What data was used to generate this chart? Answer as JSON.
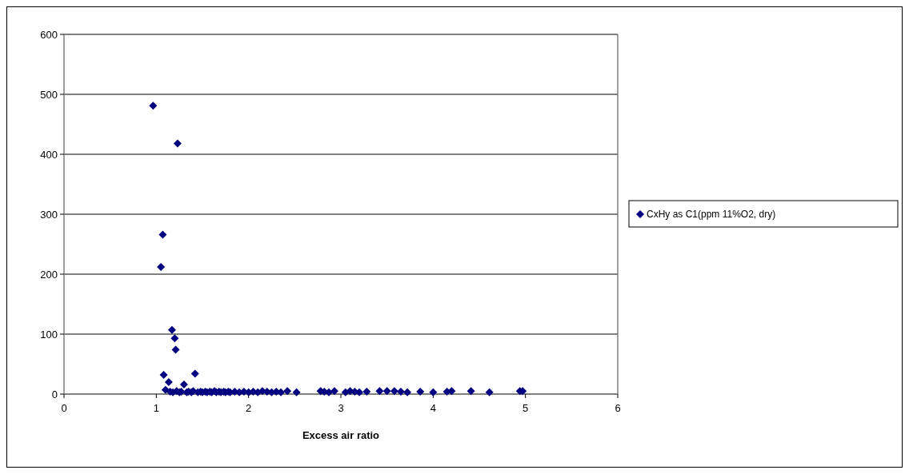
{
  "chart_data": {
    "type": "scatter",
    "xlabel": "Excess air ratio",
    "xlim": [
      0,
      6
    ],
    "xticks": [
      0,
      1,
      2,
      3,
      4,
      5,
      6
    ],
    "ylim": [
      0,
      600
    ],
    "yticks": [
      0,
      100,
      200,
      300,
      400,
      500,
      600
    ],
    "grid": "y",
    "legend": "right",
    "marker": "diamond",
    "series": [
      {
        "name": "CxHy as C1(ppm 11%O2, dry)",
        "color": "#000080",
        "x": [
          0.965,
          1.23,
          1.07,
          1.05,
          1.17,
          1.2,
          1.21,
          1.08,
          1.135,
          1.42,
          1.3,
          1.1,
          1.15,
          1.18,
          1.22,
          1.25,
          1.27,
          1.33,
          1.35,
          1.38,
          1.4,
          1.45,
          1.48,
          1.5,
          1.53,
          1.55,
          1.58,
          1.6,
          1.63,
          1.65,
          1.68,
          1.7,
          1.73,
          1.75,
          1.78,
          1.8,
          1.85,
          1.9,
          1.95,
          2.0,
          2.05,
          2.1,
          2.15,
          2.2,
          2.25,
          2.3,
          2.35,
          2.42,
          2.52,
          2.78,
          2.82,
          2.87,
          2.93,
          3.05,
          3.1,
          3.15,
          3.2,
          3.28,
          3.42,
          3.5,
          3.58,
          3.65,
          3.72,
          3.86,
          4.0,
          4.15,
          4.2,
          4.41,
          4.61,
          4.94,
          4.97
        ],
        "values": [
          481,
          418,
          266,
          212,
          107,
          93,
          74,
          32,
          20,
          34,
          16,
          7,
          4,
          3,
          5,
          3,
          4,
          3,
          4,
          3,
          5,
          3,
          4,
          3,
          4,
          3,
          4,
          3,
          5,
          3,
          4,
          3,
          4,
          3,
          4,
          3,
          4,
          3,
          4,
          3,
          4,
          3,
          5,
          4,
          3,
          4,
          3,
          5,
          3,
          5,
          4,
          3,
          5,
          3,
          5,
          4,
          3,
          4,
          5,
          5,
          5,
          4,
          3,
          4,
          3,
          4,
          5,
          5,
          3,
          5,
          5
        ]
      }
    ]
  }
}
